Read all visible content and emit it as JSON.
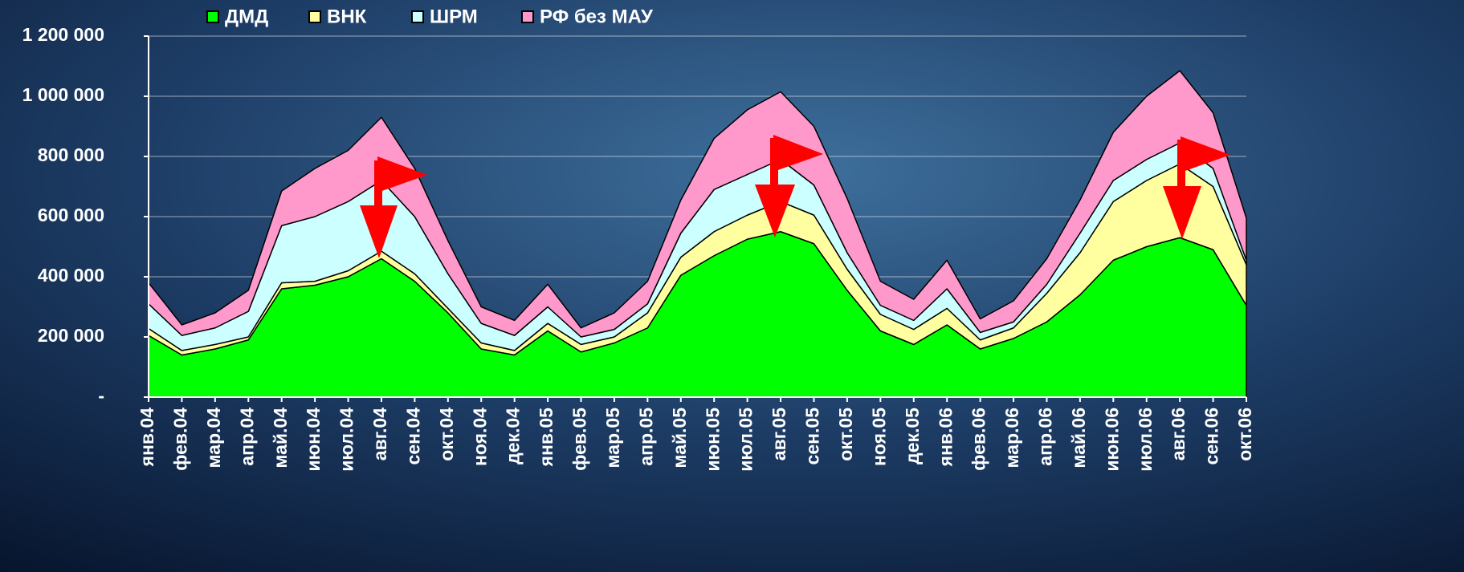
{
  "chart_data": {
    "type": "stacked_area",
    "categories": [
      "янв.04",
      "фев.04",
      "мар.04",
      "апр.04",
      "май.04",
      "июн.04",
      "июл.04",
      "авг.04",
      "сен.04",
      "окт.04",
      "ноя.04",
      "дек.04",
      "янв.05",
      "фев.05",
      "мар.05",
      "апр.05",
      "май.05",
      "июн.05",
      "июл.05",
      "авг.05",
      "сен.05",
      "окт.05",
      "ноя.05",
      "дек.05",
      "янв.06",
      "фев.06",
      "мар.06",
      "апр.06",
      "май.06",
      "июн.06",
      "июл.06",
      "авг.06",
      "сен.06",
      "окт.06"
    ],
    "series": [
      {
        "name": "ДМД",
        "color": "#00ff00",
        "values": [
          205000,
          140000,
          160000,
          190000,
          360000,
          372000,
          400000,
          460000,
          385000,
          280000,
          160000,
          140000,
          220000,
          150000,
          180000,
          230000,
          405000,
          470000,
          525000,
          550000,
          510000,
          355000,
          220000,
          175000,
          240000,
          160000,
          195000,
          250000,
          340000,
          455000,
          500000,
          530000,
          490000,
          305000
        ]
      },
      {
        "name": "ВНК",
        "color": "#ffffa0",
        "values": [
          23000,
          15000,
          15000,
          10000,
          20000,
          13000,
          20000,
          25000,
          25000,
          15000,
          20000,
          15000,
          25000,
          25000,
          20000,
          50000,
          60000,
          80000,
          80000,
          100000,
          95000,
          70000,
          55000,
          50000,
          55000,
          30000,
          35000,
          95000,
          140000,
          195000,
          220000,
          245000,
          210000,
          135000
        ]
      },
      {
        "name": "ШРМ",
        "color": "#ccffff",
        "values": [
          82000,
          50000,
          55000,
          85000,
          190000,
          215000,
          230000,
          235000,
          190000,
          115000,
          65000,
          50000,
          55000,
          25000,
          25000,
          30000,
          80000,
          140000,
          135000,
          140000,
          100000,
          55000,
          30000,
          30000,
          65000,
          25000,
          20000,
          30000,
          65000,
          70000,
          70000,
          70000,
          60000,
          15000
        ]
      },
      {
        "name": "РФ без МАУ",
        "color": "#ff99cc",
        "values": [
          70000,
          35000,
          50000,
          70000,
          115000,
          160000,
          170000,
          210000,
          160000,
          110000,
          55000,
          50000,
          75000,
          30000,
          55000,
          75000,
          110000,
          170000,
          215000,
          225000,
          195000,
          180000,
          80000,
          70000,
          95000,
          45000,
          70000,
          85000,
          110000,
          160000,
          210000,
          240000,
          185000,
          140000
        ]
      }
    ],
    "ylim": [
      0,
      1200000
    ],
    "yticks": [
      {
        "value": 0,
        "label": "-"
      },
      {
        "value": 200000,
        "label": "200 000"
      },
      {
        "value": 400000,
        "label": "400 000"
      },
      {
        "value": 600000,
        "label": "600 000"
      },
      {
        "value": 800000,
        "label": "800 000"
      },
      {
        "value": 1000000,
        "label": "1 000 000"
      },
      {
        "value": 1200000,
        "label": "1 200 000"
      }
    ],
    "grid": true
  }
}
